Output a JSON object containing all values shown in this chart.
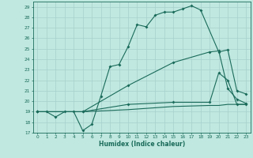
{
  "xlabel": "Humidex (Indice chaleur)",
  "bg_color": "#c0e8e0",
  "line_color": "#1a6b5a",
  "xlim": [
    -0.5,
    23.5
  ],
  "ylim": [
    17,
    29.5
  ],
  "xticks": [
    0,
    1,
    2,
    3,
    4,
    5,
    6,
    7,
    8,
    9,
    10,
    11,
    12,
    13,
    14,
    15,
    16,
    17,
    18,
    19,
    20,
    21,
    22,
    23
  ],
  "yticks": [
    17,
    18,
    19,
    20,
    21,
    22,
    23,
    24,
    25,
    26,
    27,
    28,
    29
  ],
  "line1_x": [
    0,
    1,
    2,
    3,
    4,
    5,
    6,
    7,
    8,
    9,
    10,
    11,
    12,
    13,
    14,
    15,
    16,
    17,
    18,
    20,
    21,
    22,
    23
  ],
  "line1_y": [
    19,
    19,
    18.5,
    19,
    19,
    17.2,
    17.8,
    20.5,
    23.3,
    23.5,
    25.2,
    27.3,
    27.1,
    28.2,
    28.5,
    28.5,
    28.8,
    29.1,
    28.7,
    24.7,
    24.9,
    21.0,
    20.7
  ],
  "line2_x": [
    0,
    5,
    10,
    15,
    19,
    20,
    21,
    22,
    23
  ],
  "line2_y": [
    19,
    19,
    21.5,
    23.7,
    24.7,
    24.8,
    21.2,
    20.2,
    19.8
  ],
  "line3_x": [
    0,
    5,
    10,
    15,
    19,
    20,
    21,
    22,
    23
  ],
  "line3_y": [
    19,
    19,
    19.7,
    19.9,
    19.9,
    22.7,
    22.0,
    19.7,
    19.7
  ],
  "line4_x": [
    0,
    5,
    10,
    15,
    19,
    20,
    21,
    22,
    23
  ],
  "line4_y": [
    19,
    19,
    19.2,
    19.5,
    19.6,
    19.6,
    19.7,
    19.7,
    19.7
  ],
  "grid_color": "#a8d0cc"
}
